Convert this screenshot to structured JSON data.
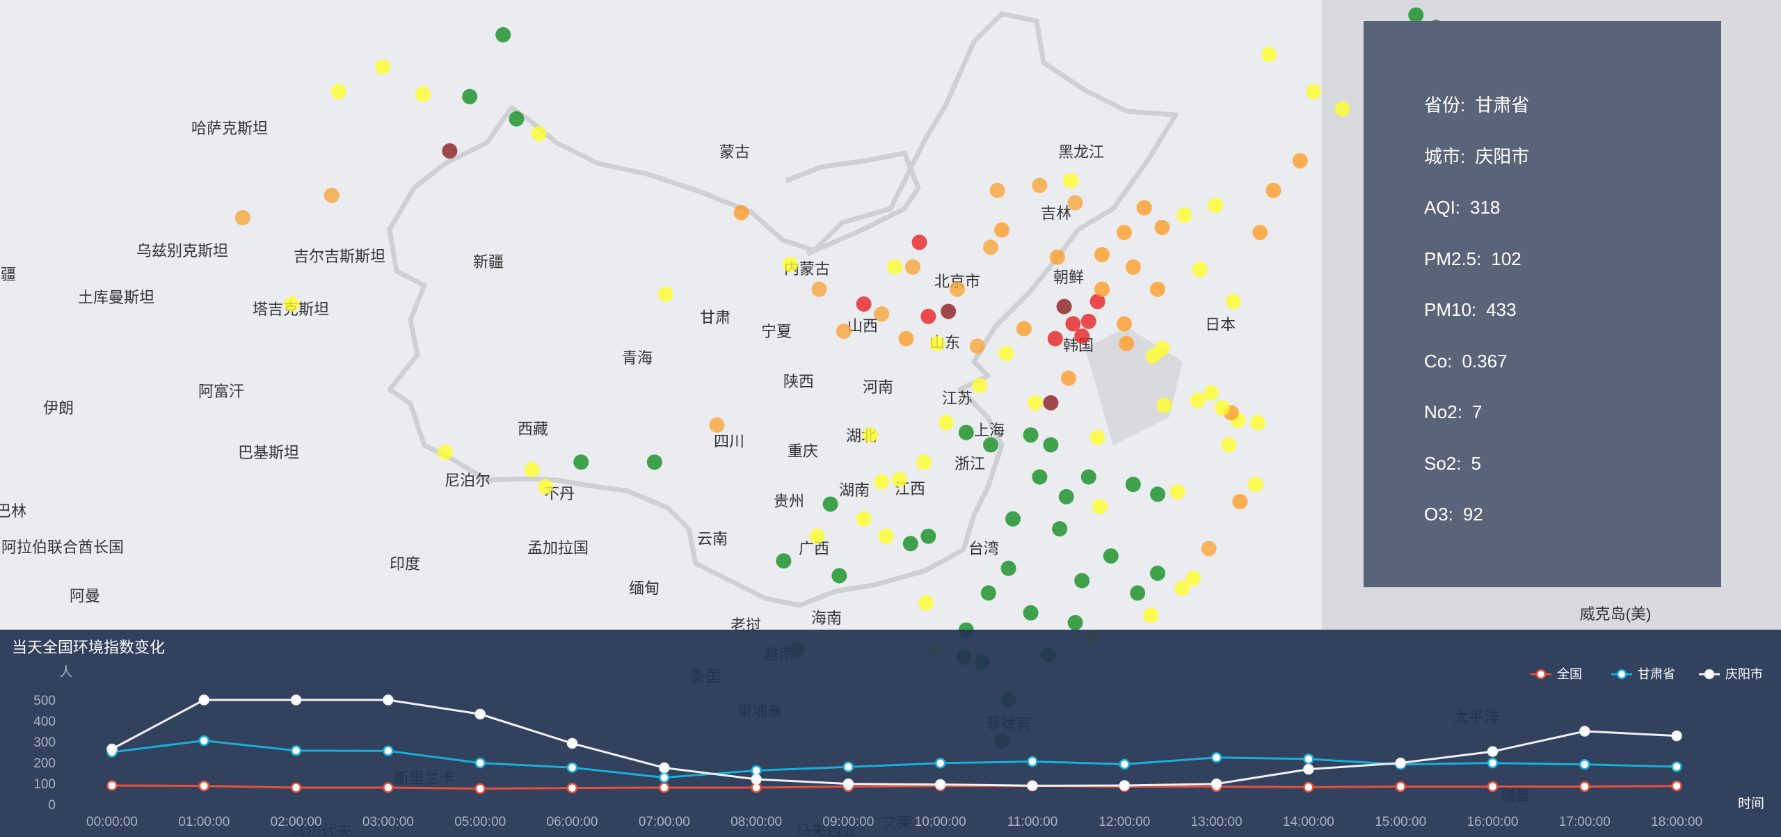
{
  "map": {
    "labels": [
      "哈萨克斯坦",
      "乌兹别克斯坦",
      "土库曼斯坦",
      "吉尔吉斯斯坦",
      "塔吉克斯坦",
      "阿富汗",
      "伊朗",
      "巴基斯坦",
      "尼泊尔",
      "不丹",
      "印度",
      "孟加拉国",
      "缅甸",
      "老挝",
      "越南",
      "泰国",
      "柬埔寨",
      "菲律宾",
      "阿拉伯联合酋长国",
      "阿曼",
      "蒙古",
      "新疆",
      "西藏",
      "青海",
      "甘肃",
      "宁夏",
      "内蒙古",
      "山西",
      "陕西",
      "四川",
      "重庆",
      "云南",
      "贵州",
      "广西",
      "海南",
      "湖南",
      "湖北",
      "河南",
      "江西",
      "浙江",
      "上海",
      "江苏",
      "山东",
      "北京市",
      "吉林",
      "黑龙江",
      "朝鲜",
      "韩国",
      "日本",
      "台湾",
      "威克岛(美)",
      "太平洋",
      "瑞鲁",
      "文莱",
      "马来西亚",
      "斯里兰卡",
      "马尔代夫",
      "疆",
      "巴林"
    ],
    "stations": [
      {
        "lon": 126.6,
        "lat": 50.2,
        "aqi": 40
      },
      {
        "lon": 129.5,
        "lat": 47.2,
        "aqi": 40
      },
      {
        "lon": 87.6,
        "lat": 46.9,
        "aqi": 40
      },
      {
        "lon": 86.1,
        "lat": 44.4,
        "aqi": 40
      },
      {
        "lon": 88.2,
        "lat": 43.5,
        "aqi": 40
      },
      {
        "lon": 85.2,
        "lat": 42.2,
        "aqi": 320
      },
      {
        "lon": 79.9,
        "lat": 40.4,
        "aqi": 110
      },
      {
        "lon": 82.2,
        "lat": 45.6,
        "aqi": 90
      },
      {
        "lon": 84.0,
        "lat": 44.5,
        "aqi": 90
      },
      {
        "lon": 80.2,
        "lat": 44.6,
        "aqi": 90
      },
      {
        "lon": 89.2,
        "lat": 42.9,
        "aqi": 90
      },
      {
        "lon": 75.9,
        "lat": 39.5,
        "aqi": 150
      },
      {
        "lon": 78.1,
        "lat": 36.0,
        "aqi": 90
      },
      {
        "lon": 91.1,
        "lat": 29.6,
        "aqi": 40
      },
      {
        "lon": 94.4,
        "lat": 29.6,
        "aqi": 30
      },
      {
        "lon": 88.9,
        "lat": 29.3,
        "aqi": 70
      },
      {
        "lon": 85.0,
        "lat": 30.0,
        "aqi": 75
      },
      {
        "lon": 89.5,
        "lat": 28.6,
        "aqi": 85
      },
      {
        "lon": 97.2,
        "lat": 31.1,
        "aqi": 150
      },
      {
        "lon": 94.9,
        "lat": 36.4,
        "aqi": 90
      },
      {
        "lon": 98.3,
        "lat": 39.7,
        "aqi": 160
      },
      {
        "lon": 101.8,
        "lat": 36.6,
        "aqi": 150
      },
      {
        "lon": 103.8,
        "lat": 36.0,
        "aqi": 240
      },
      {
        "lon": 106.3,
        "lat": 38.5,
        "aqi": 230
      },
      {
        "lon": 107.6,
        "lat": 35.7,
        "aqi": 318
      },
      {
        "lon": 106.7,
        "lat": 35.5,
        "aqi": 300
      },
      {
        "lon": 104.6,
        "lat": 35.6,
        "aqi": 150
      },
      {
        "lon": 105.7,
        "lat": 34.6,
        "aqi": 160
      },
      {
        "lon": 102.9,
        "lat": 34.9,
        "aqi": 120
      },
      {
        "lon": 100.5,
        "lat": 37.6,
        "aqi": 90
      },
      {
        "lon": 111.7,
        "lat": 40.8,
        "aqi": 110
      },
      {
        "lon": 109.8,
        "lat": 40.6,
        "aqi": 150
      },
      {
        "lon": 113.1,
        "lat": 41.0,
        "aqi": 90
      },
      {
        "lon": 116.4,
        "lat": 39.9,
        "aqi": 160
      },
      {
        "lon": 117.2,
        "lat": 39.1,
        "aqi": 170
      },
      {
        "lon": 114.5,
        "lat": 38.0,
        "aqi": 200
      },
      {
        "lon": 112.5,
        "lat": 37.9,
        "aqi": 170
      },
      {
        "lon": 113.3,
        "lat": 40.1,
        "aqi": 150
      },
      {
        "lon": 114.3,
        "lat": 36.1,
        "aqi": 300
      },
      {
        "lon": 113.6,
        "lat": 34.7,
        "aqi": 240
      },
      {
        "lon": 112.4,
        "lat": 34.6,
        "aqi": 290
      },
      {
        "lon": 108.9,
        "lat": 34.3,
        "aqi": 150
      },
      {
        "lon": 109.5,
        "lat": 38.3,
        "aqi": 150
      },
      {
        "lon": 117.0,
        "lat": 36.6,
        "aqi": 170
      },
      {
        "lon": 120.4,
        "lat": 36.1,
        "aqi": 90
      },
      {
        "lon": 118.8,
        "lat": 32.1,
        "aqi": 90
      },
      {
        "lon": 121.5,
        "lat": 31.2,
        "aqi": 90
      },
      {
        "lon": 120.2,
        "lat": 30.3,
        "aqi": 90
      },
      {
        "lon": 117.3,
        "lat": 31.9,
        "aqi": 90
      },
      {
        "lon": 114.3,
        "lat": 30.6,
        "aqi": 90
      },
      {
        "lon": 112.9,
        "lat": 28.2,
        "aqi": 40
      },
      {
        "lon": 115.9,
        "lat": 28.7,
        "aqi": 40
      },
      {
        "lon": 119.3,
        "lat": 26.1,
        "aqi": 150
      },
      {
        "lon": 113.3,
        "lat": 23.1,
        "aqi": 40
      },
      {
        "lon": 114.1,
        "lat": 22.5,
        "aqi": 90
      },
      {
        "lon": 108.4,
        "lat": 22.8,
        "aqi": 40
      },
      {
        "lon": 110.3,
        "lat": 20.0,
        "aqi": 40
      },
      {
        "lon": 110.0,
        "lat": 18.3,
        "aqi": 40
      },
      {
        "lon": 106.7,
        "lat": 26.6,
        "aqi": 40
      },
      {
        "lon": 102.7,
        "lat": 25.0,
        "aqi": 40
      },
      {
        "lon": 104.1,
        "lat": 30.7,
        "aqi": 90
      },
      {
        "lon": 106.5,
        "lat": 29.6,
        "aqi": 90
      },
      {
        "lon": 123.4,
        "lat": 41.8,
        "aqi": 160
      },
      {
        "lon": 125.3,
        "lat": 43.9,
        "aqi": 90
      },
      {
        "lon": 126.6,
        "lat": 45.8,
        "aqi": 90
      },
      {
        "lon": 128.6,
        "lat": 47.7,
        "aqi": 40
      },
      {
        "lon": 131.0,
        "lat": 45.0,
        "aqi": 40
      },
      {
        "lon": 119.5,
        "lat": 49.2,
        "aqi": 90
      },
      {
        "lon": 122.0,
        "lat": 46.1,
        "aqi": 90
      },
      {
        "lon": 124.0,
        "lat": 44.6,
        "aqi": 90
      },
      {
        "lon": 121.6,
        "lat": 38.9,
        "aqi": 160
      },
      {
        "lon": 122.2,
        "lat": 40.6,
        "aqi": 170
      },
      {
        "lon": 113.2,
        "lat": 35.2,
        "aqi": 250
      },
      {
        "lon": 112.8,
        "lat": 35.9,
        "aqi": 320
      },
      {
        "lon": 113.9,
        "lat": 35.3,
        "aqi": 300
      },
      {
        "lon": 111.0,
        "lat": 35.0,
        "aqi": 160
      },
      {
        "lon": 110.2,
        "lat": 34.0,
        "aqi": 90
      },
      {
        "lon": 111.5,
        "lat": 32.0,
        "aqi": 90
      },
      {
        "lon": 112.2,
        "lat": 32.0,
        "aqi": 320
      },
      {
        "lon": 113.0,
        "lat": 33.0,
        "aqi": 160
      },
      {
        "lon": 115.6,
        "lat": 34.4,
        "aqi": 160
      },
      {
        "lon": 116.8,
        "lat": 33.9,
        "aqi": 90
      },
      {
        "lon": 117.2,
        "lat": 34.2,
        "aqi": 90
      },
      {
        "lon": 119.4,
        "lat": 32.4,
        "aqi": 90
      },
      {
        "lon": 120.6,
        "lat": 31.3,
        "aqi": 90
      },
      {
        "lon": 120.3,
        "lat": 31.6,
        "aqi": 160
      },
      {
        "lon": 119.9,
        "lat": 31.8,
        "aqi": 90
      },
      {
        "lon": 121.4,
        "lat": 28.7,
        "aqi": 90
      },
      {
        "lon": 120.7,
        "lat": 28.0,
        "aqi": 160
      },
      {
        "lon": 118.6,
        "lat": 24.9,
        "aqi": 90
      },
      {
        "lon": 117.0,
        "lat": 25.1,
        "aqi": 40
      },
      {
        "lon": 116.1,
        "lat": 24.3,
        "aqi": 40
      },
      {
        "lon": 114.9,
        "lat": 25.8,
        "aqi": 40
      },
      {
        "lon": 113.6,
        "lat": 24.8,
        "aqi": 40
      },
      {
        "lon": 111.3,
        "lat": 23.5,
        "aqi": 40
      },
      {
        "lon": 109.4,
        "lat": 24.3,
        "aqi": 40
      },
      {
        "lon": 110.3,
        "lat": 25.3,
        "aqi": 40
      },
      {
        "lon": 105.9,
        "lat": 26.3,
        "aqi": 40
      },
      {
        "lon": 104.8,
        "lat": 26.6,
        "aqi": 90
      },
      {
        "lon": 103.8,
        "lat": 27.3,
        "aqi": 90
      },
      {
        "lon": 100.2,
        "lat": 25.6,
        "aqi": 40
      },
      {
        "lon": 100.8,
        "lat": 22.0,
        "aqi": 40
      },
      {
        "lon": 101.7,
        "lat": 26.6,
        "aqi": 90
      },
      {
        "lon": 102.3,
        "lat": 27.9,
        "aqi": 40
      },
      {
        "lon": 104.6,
        "lat": 28.8,
        "aqi": 90
      },
      {
        "lon": 105.4,
        "lat": 28.9,
        "aqi": 90
      },
      {
        "lon": 107.5,
        "lat": 31.2,
        "aqi": 90
      },
      {
        "lon": 108.4,
        "lat": 30.8,
        "aqi": 40
      },
      {
        "lon": 109.5,
        "lat": 30.3,
        "aqi": 40
      },
      {
        "lon": 111.3,
        "lat": 30.7,
        "aqi": 40
      },
      {
        "lon": 112.2,
        "lat": 30.3,
        "aqi": 40
      },
      {
        "lon": 113.9,
        "lat": 29.0,
        "aqi": 40
      },
      {
        "lon": 111.7,
        "lat": 29.0,
        "aqi": 40
      },
      {
        "lon": 110.5,
        "lat": 27.3,
        "aqi": 40
      },
      {
        "lon": 112.6,
        "lat": 26.9,
        "aqi": 40
      },
      {
        "lon": 114.4,
        "lat": 27.8,
        "aqi": 90
      },
      {
        "lon": 117.0,
        "lat": 28.3,
        "aqi": 40
      },
      {
        "lon": 117.9,
        "lat": 28.4,
        "aqi": 90
      },
      {
        "lon": 118.1,
        "lat": 24.5,
        "aqi": 90
      },
      {
        "lon": 106.6,
        "lat": 23.9,
        "aqi": 90
      },
      {
        "lon": 107.0,
        "lat": 22.0,
        "aqi": 90
      },
      {
        "lon": 108.3,
        "lat": 21.7,
        "aqi": 40
      },
      {
        "lon": 109.1,
        "lat": 21.5,
        "aqi": 40
      },
      {
        "lon": 112.1,
        "lat": 21.8,
        "aqi": 40
      },
      {
        "lon": 116.7,
        "lat": 23.4,
        "aqi": 90
      },
      {
        "lon": 106.0,
        "lat": 37.5,
        "aqi": 150
      },
      {
        "lon": 105.2,
        "lat": 37.5,
        "aqi": 90
      },
      {
        "lon": 108.0,
        "lat": 36.6,
        "aqi": 150
      },
      {
        "lon": 107.1,
        "lat": 34.4,
        "aqi": 90
      },
      {
        "lon": 109.0,
        "lat": 32.7,
        "aqi": 90
      },
      {
        "lon": 110.0,
        "lat": 39.0,
        "aqi": 160
      },
      {
        "lon": 118.9,
        "lat": 37.4,
        "aqi": 90
      },
      {
        "lon": 115.9,
        "lat": 37.5,
        "aqi": 160
      },
      {
        "lon": 114.5,
        "lat": 36.6,
        "aqi": 160
      },
      {
        "lon": 115.5,
        "lat": 38.9,
        "aqi": 160
      },
      {
        "lon": 118.2,
        "lat": 39.6,
        "aqi": 90
      },
      {
        "lon": 119.6,
        "lat": 40.0,
        "aqi": 90
      },
      {
        "lon": 115.5,
        "lat": 35.2,
        "aqi": 160
      }
    ]
  },
  "info": {
    "rows": [
      {
        "label": "省份:",
        "value": "甘肃省"
      },
      {
        "label": "城市:",
        "value": "庆阳市"
      },
      {
        "label": "AQI:",
        "value": "318"
      },
      {
        "label": "PM2.5:",
        "value": "102"
      },
      {
        "label": "PM10:",
        "value": "433"
      },
      {
        "label": "Co:",
        "value": "0.367"
      },
      {
        "label": "No2:",
        "value": "7"
      },
      {
        "label": "So2:",
        "value": "5"
      },
      {
        "label": "O3:",
        "value": "92"
      }
    ]
  },
  "chart_data": {
    "type": "line",
    "title": "当天全国环境指数变化",
    "ylabel": "人",
    "xlabel": "时间",
    "ylim": [
      0,
      500
    ],
    "yticks": [
      0,
      100,
      200,
      300,
      400,
      500
    ],
    "legend_position": "top-right",
    "categories": [
      "00:00:00",
      "01:00:00",
      "02:00:00",
      "03:00:00",
      "05:00:00",
      "06:00:00",
      "07:00:00",
      "08:00:00",
      "09:00:00",
      "10:00:00",
      "11:00:00",
      "12:00:00",
      "13:00:00",
      "14:00:00",
      "15:00:00",
      "16:00:00",
      "17:00:00",
      "18:00:00"
    ],
    "series": [
      {
        "name": "全国",
        "color": "#e8503a",
        "values": [
          90,
          88,
          80,
          80,
          75,
          78,
          80,
          80,
          85,
          88,
          88,
          85,
          85,
          82,
          85,
          85,
          85,
          88
        ]
      },
      {
        "name": "甘肃省",
        "color": "#17b0d8",
        "values": [
          250,
          305,
          257,
          256,
          198,
          176,
          128,
          162,
          179,
          197,
          205,
          192,
          224,
          217,
          191,
          198,
          191,
          180
        ]
      },
      {
        "name": "庆阳市",
        "color": "#f1f1f1",
        "values": [
          265,
          500,
          500,
          500,
          432,
          292,
          175,
          120,
          98,
          95,
          89,
          90,
          98,
          168,
          198,
          253,
          350,
          328
        ]
      }
    ]
  }
}
